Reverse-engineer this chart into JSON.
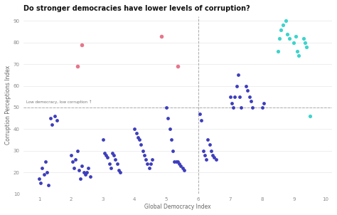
{
  "title": "Do stronger democracies have lower levels of corruption?",
  "xlabel": "Global Democracy Index",
  "ylabel": "Corruption Perceptions Index",
  "annotation": "Low democracy, low corruption ↑",
  "xlim": [
    0.5,
    10.2
  ],
  "ylim": [
    10,
    92
  ],
  "yticks": [
    10,
    20,
    30,
    40,
    50,
    60,
    70,
    80,
    90
  ],
  "xticks": [
    1,
    2,
    3,
    4,
    5,
    6,
    7,
    8,
    9,
    10
  ],
  "vline_x": 6.0,
  "hline_y": 50,
  "background_color": "#ffffff",
  "blue_color": "#3d3dbd",
  "pink_color": "#e8758a",
  "cyan_color": "#3dd4cc",
  "blue_points": [
    [
      1.0,
      17
    ],
    [
      1.05,
      15
    ],
    [
      1.1,
      22
    ],
    [
      1.15,
      19
    ],
    [
      1.2,
      25
    ],
    [
      1.25,
      20
    ],
    [
      1.3,
      14
    ],
    [
      1.35,
      45
    ],
    [
      1.4,
      42
    ],
    [
      1.5,
      46
    ],
    [
      1.55,
      44
    ],
    [
      2.0,
      28
    ],
    [
      2.05,
      25
    ],
    [
      2.1,
      22
    ],
    [
      2.15,
      26
    ],
    [
      2.2,
      30
    ],
    [
      2.25,
      21
    ],
    [
      2.3,
      17
    ],
    [
      2.35,
      23
    ],
    [
      2.4,
      20
    ],
    [
      2.45,
      19
    ],
    [
      2.5,
      20
    ],
    [
      2.55,
      22
    ],
    [
      2.6,
      18
    ],
    [
      3.0,
      35
    ],
    [
      3.05,
      29
    ],
    [
      3.1,
      28
    ],
    [
      3.15,
      27
    ],
    [
      3.2,
      24
    ],
    [
      3.25,
      22
    ],
    [
      3.3,
      29
    ],
    [
      3.35,
      28
    ],
    [
      3.4,
      26
    ],
    [
      3.45,
      24
    ],
    [
      3.5,
      21
    ],
    [
      3.55,
      20
    ],
    [
      4.0,
      40
    ],
    [
      4.05,
      38
    ],
    [
      4.1,
      36
    ],
    [
      4.15,
      35
    ],
    [
      4.2,
      33
    ],
    [
      4.25,
      30
    ],
    [
      4.3,
      28
    ],
    [
      4.35,
      26
    ],
    [
      4.4,
      24
    ],
    [
      4.45,
      22
    ],
    [
      4.5,
      24
    ],
    [
      4.55,
      26
    ],
    [
      5.0,
      50
    ],
    [
      5.05,
      45
    ],
    [
      5.1,
      40
    ],
    [
      5.15,
      35
    ],
    [
      5.2,
      30
    ],
    [
      5.25,
      25
    ],
    [
      5.3,
      25
    ],
    [
      5.35,
      25
    ],
    [
      5.4,
      24
    ],
    [
      5.45,
      23
    ],
    [
      5.5,
      22
    ],
    [
      5.55,
      21
    ],
    [
      6.05,
      47
    ],
    [
      6.1,
      44
    ],
    [
      6.15,
      30
    ],
    [
      6.2,
      28
    ],
    [
      6.25,
      26
    ],
    [
      6.3,
      35
    ],
    [
      6.35,
      33
    ],
    [
      6.4,
      30
    ],
    [
      6.45,
      28
    ],
    [
      6.5,
      27
    ],
    [
      6.55,
      26
    ],
    [
      7.0,
      55
    ],
    [
      7.05,
      52
    ],
    [
      7.1,
      50
    ],
    [
      7.15,
      55
    ],
    [
      7.2,
      60
    ],
    [
      7.25,
      65
    ],
    [
      7.3,
      55
    ],
    [
      7.35,
      50
    ],
    [
      7.5,
      60
    ],
    [
      7.55,
      58
    ],
    [
      7.6,
      55
    ],
    [
      7.65,
      53
    ],
    [
      7.7,
      50
    ],
    [
      8.0,
      50
    ],
    [
      8.05,
      52
    ]
  ],
  "pink_points": [
    [
      2.2,
      69
    ],
    [
      2.35,
      79
    ],
    [
      4.85,
      83
    ],
    [
      5.35,
      69
    ]
  ],
  "cyan_points": [
    [
      8.5,
      76
    ],
    [
      8.55,
      82
    ],
    [
      8.6,
      86
    ],
    [
      8.65,
      88
    ],
    [
      8.75,
      90
    ],
    [
      8.8,
      84
    ],
    [
      8.85,
      82
    ],
    [
      9.0,
      80
    ],
    [
      9.05,
      83
    ],
    [
      9.1,
      76
    ],
    [
      9.15,
      74
    ],
    [
      9.3,
      82
    ],
    [
      9.35,
      80
    ],
    [
      9.4,
      78
    ],
    [
      9.5,
      46
    ]
  ]
}
